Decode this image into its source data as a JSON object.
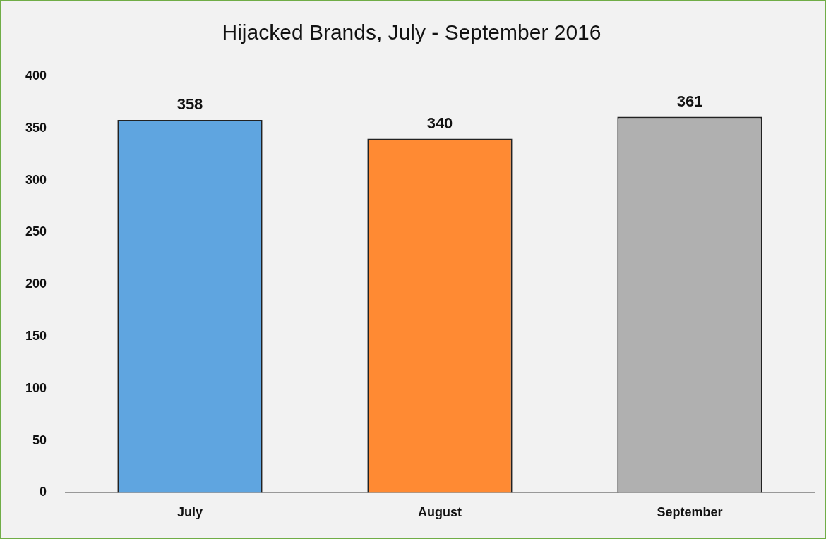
{
  "chart_data": {
    "type": "bar",
    "title": "Hijacked Brands, July - September 2016",
    "categories": [
      "July",
      "August",
      "September"
    ],
    "values": [
      358,
      340,
      361
    ],
    "colors": [
      "#5fa5e0",
      "#ff8a33",
      "#b0b0b0"
    ],
    "ylim": [
      0,
      400
    ],
    "yticks": [
      0,
      50,
      100,
      150,
      200,
      250,
      300,
      350,
      400
    ],
    "grid": false,
    "legend": false,
    "data_labels": true
  }
}
